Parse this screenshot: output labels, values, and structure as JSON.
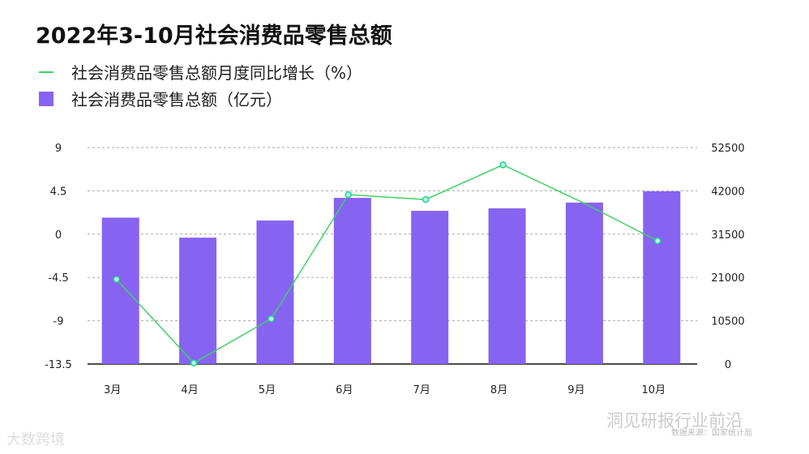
{
  "chart_data": {
    "type": "bar+line",
    "title": "2022年3-10月社会消费品零售总额",
    "categories": [
      "3月",
      "4月",
      "5月",
      "6月",
      "7月",
      "8月",
      "9月",
      "10月"
    ],
    "series": [
      {
        "name": "社会消费品零售总额月度同比增长（%）",
        "type": "line",
        "axis": "left",
        "color": "#3fd163",
        "values": [
          -4.7,
          -13.4,
          -8.8,
          4.1,
          3.6,
          7.2,
          3.4,
          -0.7
        ]
      },
      {
        "name": "社会消费品零售总额（亿元）",
        "type": "bar",
        "axis": "right",
        "color": "#8763f2",
        "values": [
          35500,
          30650,
          34800,
          40300,
          37150,
          37750,
          39150,
          41900
        ]
      }
    ],
    "left_axis": {
      "ticks": [
        "9",
        "4.5",
        "0",
        "-4.5",
        "-9",
        "-13.5"
      ],
      "range": [
        -13.5,
        9
      ]
    },
    "right_axis": {
      "ticks": [
        "52500",
        "42000",
        "31500",
        "21000",
        "10500",
        "0"
      ],
      "range": [
        0,
        52500
      ]
    },
    "grid": true,
    "legend_position": "top-left"
  },
  "watermarks": {
    "left": "大数跨境",
    "right": "洞见研报行业前沿",
    "source": "数据来源：国家统计局"
  }
}
